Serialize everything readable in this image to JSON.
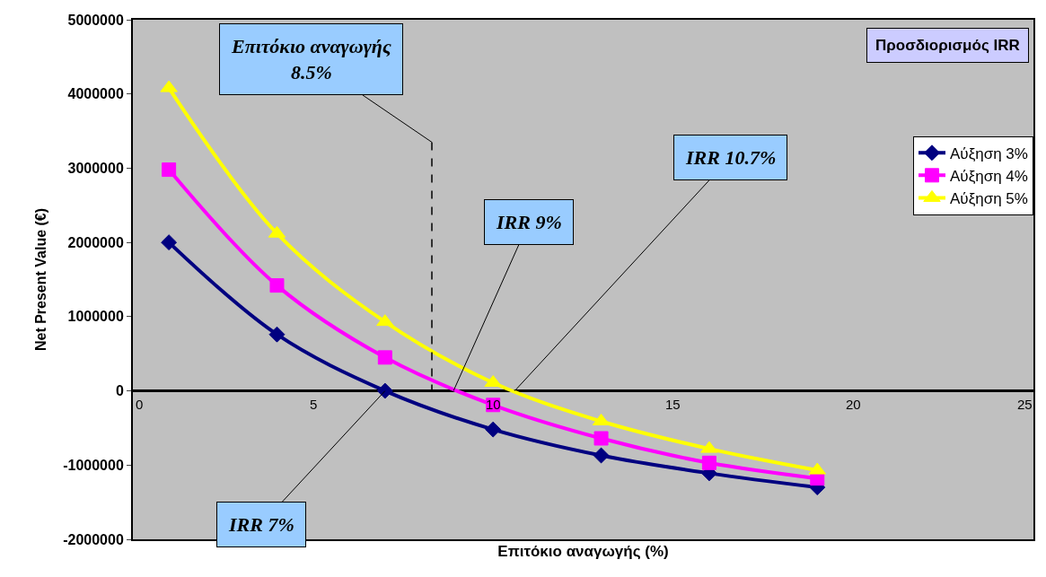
{
  "chart_data": {
    "type": "line",
    "title": "Προσδιορισμός IRR",
    "xlabel": "Επιτόκιο αναγωγής (%)",
    "ylabel": "Net Present Value (€)",
    "x": [
      1,
      4,
      7,
      10,
      13,
      16,
      19
    ],
    "series": [
      {
        "name": "Αύξηση 3%",
        "color": "#000080",
        "marker": "diamond",
        "values": [
          2000000,
          760000,
          0,
          -520000,
          -870000,
          -1110000,
          -1300000
        ]
      },
      {
        "name": "Αύξηση 4%",
        "color": "#ff00ff",
        "marker": "square",
        "values": [
          2980000,
          1420000,
          450000,
          -190000,
          -640000,
          -970000,
          -1180000
        ]
      },
      {
        "name": "Αύξηση 5%",
        "color": "#ffff00",
        "marker": "triangle",
        "values": [
          4080000,
          2120000,
          930000,
          110000,
          -410000,
          -780000,
          -1070000
        ]
      },
      {
        "type": "line",
        "x": [
          8.3,
          8.3
        ],
        "color": "#000000",
        "line_style": "dashed",
        "marker": "none",
        "values": [
          3350000,
          0
        ]
      }
    ],
    "annotations": [
      {
        "text": "Επιτόκιο αναγωγής\n8.5%",
        "x": 8.3,
        "y": 3350000
      },
      {
        "text": "IRR 7%",
        "x": 7,
        "y": 0
      },
      {
        "text": "IRR 9%",
        "x": 8.9,
        "y": 0
      },
      {
        "text": "IRR 10.7%",
        "x": 10.6,
        "y": 0
      }
    ],
    "xlim": [
      0,
      25
    ],
    "xticks": [
      0,
      5,
      10,
      15,
      20,
      25
    ],
    "ylim": [
      -2000000,
      5000000
    ],
    "yticks": [
      -2000000,
      -1000000,
      0,
      1000000,
      2000000,
      3000000,
      4000000,
      5000000
    ],
    "grid": false,
    "legend": "right"
  }
}
